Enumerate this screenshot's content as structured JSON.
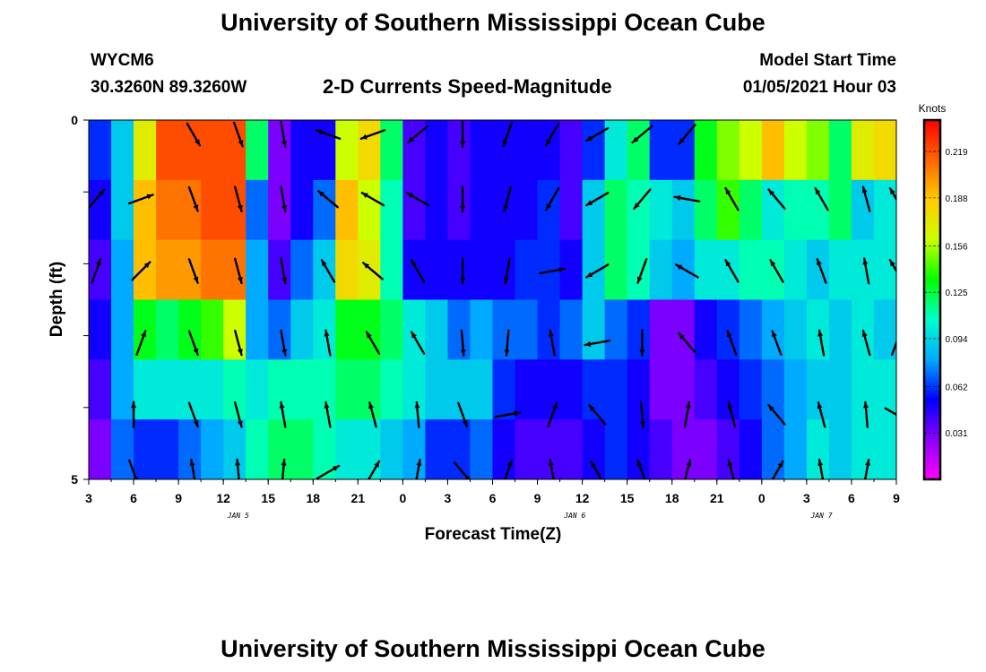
{
  "header": {
    "title": "University of Southern Mississippi Ocean Cube",
    "station_id": "WYCM6",
    "coordinates": "30.3260N 89.3260W",
    "subtitle": "2-D Currents Speed-Magnitude",
    "model_start_label": "Model Start Time",
    "model_start_value": "01/05/2021 Hour 03"
  },
  "footer": {
    "title": "University of Southern Mississippi Ocean Cube"
  },
  "colors": {
    "colorbar_stops": [
      "#ff00ff",
      "#8c00ff",
      "#0000ff",
      "#00aaff",
      "#00ffcc",
      "#00ff00",
      "#ccff00",
      "#ffcc00",
      "#ff6600",
      "#ff0000"
    ]
  },
  "chart_data": {
    "type": "heatmap",
    "xlabel": "Forecast Time(Z)",
    "ylabel": "Depth (ft)",
    "x_range_hours": [
      0,
      54
    ],
    "ylim": [
      0,
      5
    ],
    "y_ticks": [
      "0",
      "5"
    ],
    "x_tick_labels": [
      "3",
      "6",
      "9",
      "12",
      "15",
      "18",
      "21",
      "0",
      "3",
      "6",
      "9",
      "12",
      "15",
      "18",
      "21",
      "0",
      "3",
      "6",
      "9"
    ],
    "date_labels": [
      {
        "text": "JAN 5",
        "hour": 10
      },
      {
        "text": "JAN 6",
        "hour": 32.5
      },
      {
        "text": "JAN 7",
        "hour": 49
      }
    ],
    "colorbar": {
      "units": "Knots",
      "min": 0.0,
      "max": 0.24,
      "ticks": [
        "0.031",
        "0.062",
        "0.094",
        "0.125",
        "0.156",
        "0.188",
        "0.219"
      ]
    },
    "grid_layers": 5,
    "time_column_width_hours": 1.5,
    "speed_rows": [
      [
        0.06,
        0.09,
        0.17,
        0.22,
        0.22,
        0.22,
        0.22,
        0.12,
        0.03,
        0.05,
        0.05,
        0.16,
        0.18,
        0.12,
        0.04,
        0.05,
        0.04,
        0.05,
        0.05,
        0.05,
        0.05,
        0.04,
        0.06,
        0.1,
        0.12,
        0.06,
        0.06,
        0.13,
        0.15,
        0.16,
        0.19,
        0.16,
        0.15,
        0.12,
        0.17,
        0.18,
        0.17
      ],
      [
        0.05,
        0.09,
        0.19,
        0.21,
        0.21,
        0.22,
        0.22,
        0.07,
        0.03,
        0.05,
        0.07,
        0.19,
        0.16,
        0.11,
        0.04,
        0.05,
        0.04,
        0.05,
        0.05,
        0.05,
        0.06,
        0.04,
        0.09,
        0.12,
        0.11,
        0.1,
        0.09,
        0.12,
        0.14,
        0.12,
        0.1,
        0.11,
        0.11,
        0.12,
        0.09,
        0.1,
        0.11
      ],
      [
        0.04,
        0.08,
        0.19,
        0.2,
        0.2,
        0.21,
        0.21,
        0.08,
        0.04,
        0.07,
        0.09,
        0.18,
        0.17,
        0.11,
        0.05,
        0.05,
        0.05,
        0.05,
        0.05,
        0.06,
        0.06,
        0.05,
        0.09,
        0.12,
        0.11,
        0.09,
        0.08,
        0.1,
        0.1,
        0.11,
        0.11,
        0.1,
        0.09,
        0.1,
        0.1,
        0.1,
        0.11
      ],
      [
        0.05,
        0.08,
        0.13,
        0.12,
        0.13,
        0.14,
        0.16,
        0.08,
        0.07,
        0.09,
        0.1,
        0.13,
        0.13,
        0.12,
        0.1,
        0.09,
        0.07,
        0.08,
        0.07,
        0.07,
        0.06,
        0.07,
        0.09,
        0.07,
        0.06,
        0.03,
        0.03,
        0.05,
        0.06,
        0.07,
        0.08,
        0.09,
        0.1,
        0.09,
        0.1,
        0.09,
        0.12
      ],
      [
        0.04,
        0.08,
        0.1,
        0.1,
        0.1,
        0.1,
        0.11,
        0.1,
        0.11,
        0.11,
        0.11,
        0.12,
        0.12,
        0.11,
        0.1,
        0.09,
        0.09,
        0.09,
        0.06,
        0.05,
        0.05,
        0.05,
        0.06,
        0.06,
        0.05,
        0.03,
        0.03,
        0.04,
        0.05,
        0.06,
        0.07,
        0.08,
        0.09,
        0.09,
        0.1,
        0.1,
        0.11
      ],
      [
        0.03,
        0.07,
        0.06,
        0.06,
        0.07,
        0.08,
        0.09,
        0.11,
        0.12,
        0.12,
        0.11,
        0.1,
        0.1,
        0.09,
        0.08,
        0.06,
        0.06,
        0.07,
        0.05,
        0.04,
        0.04,
        0.04,
        0.05,
        0.06,
        0.05,
        0.04,
        0.03,
        0.03,
        0.04,
        0.05,
        0.07,
        0.08,
        0.1,
        0.09,
        0.1,
        0.1,
        0.11
      ]
    ],
    "vector_rows": [
      {
        "depth": 0.2,
        "hours": [
          7,
          10,
          13,
          16,
          19,
          22,
          25,
          28,
          31,
          34,
          37,
          40
        ],
        "angles_deg": [
          150,
          160,
          170,
          290,
          250,
          230,
          180,
          200,
          210,
          240,
          230,
          220
        ]
      },
      {
        "depth": 1.1,
        "hours": [
          0.5,
          3.5,
          7,
          10,
          13,
          16,
          19,
          22,
          25,
          28,
          31,
          34,
          37,
          40,
          43,
          46,
          49,
          52,
          54
        ],
        "angles_deg": [
          40,
          70,
          160,
          165,
          170,
          310,
          300,
          300,
          180,
          195,
          210,
          240,
          220,
          280,
          330,
          320,
          330,
          345,
          330
        ]
      },
      {
        "depth": 2.1,
        "hours": [
          0.5,
          3.5,
          7,
          10,
          13,
          16,
          19,
          22,
          25,
          28,
          31,
          34,
          37,
          40,
          43,
          46,
          49,
          52,
          54
        ],
        "angles_deg": [
          20,
          45,
          160,
          165,
          170,
          330,
          310,
          330,
          180,
          190,
          80,
          240,
          200,
          300,
          330,
          330,
          340,
          350,
          330
        ]
      },
      {
        "depth": 3.1,
        "hours": [
          3.5,
          7,
          10,
          13,
          16,
          19,
          22,
          25,
          28,
          31,
          34,
          37,
          40,
          43,
          46,
          49,
          52,
          54
        ],
        "angles_deg": [
          20,
          160,
          165,
          170,
          350,
          330,
          330,
          175,
          185,
          350,
          260,
          180,
          320,
          340,
          340,
          350,
          345,
          20
        ]
      },
      {
        "depth": 4.1,
        "hours": [
          3,
          7,
          10,
          13,
          16,
          19,
          22,
          25,
          28,
          31,
          34,
          37,
          40,
          43,
          46,
          49,
          52,
          54
        ],
        "angles_deg": [
          0,
          160,
          165,
          350,
          350,
          345,
          355,
          160,
          80,
          20,
          320,
          175,
          10,
          345,
          320,
          345,
          355,
          120
        ]
      },
      {
        "depth": 4.9,
        "hours": [
          3,
          7,
          10,
          13,
          16,
          19,
          22,
          25,
          28,
          31,
          34,
          37,
          40,
          43,
          46,
          49,
          52
        ],
        "angles_deg": [
          160,
          350,
          355,
          5,
          60,
          30,
          10,
          140,
          20,
          350,
          330,
          340,
          15,
          345,
          30,
          350,
          10
        ]
      }
    ]
  }
}
